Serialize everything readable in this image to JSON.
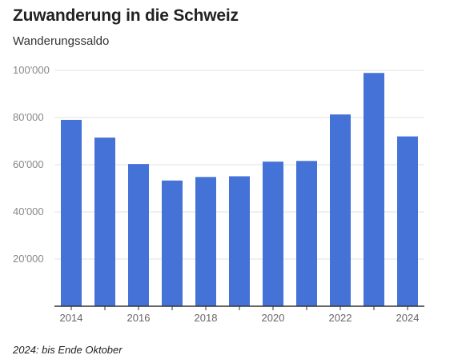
{
  "header": {
    "title": "Zuwanderung in die Schweiz",
    "subtitle": "Wanderungssaldo"
  },
  "footer": {
    "note": "2024: bis Ende Oktober"
  },
  "colors": {
    "bar": "#4472d6",
    "grid": "#e2e2e2",
    "axis": "#333333"
  },
  "chart_data": {
    "type": "bar",
    "title": "Zuwanderung in die Schweiz",
    "subtitle": "Wanderungssaldo",
    "xlabel": "",
    "ylabel": "",
    "categories": [
      "2014",
      "2015",
      "2016",
      "2017",
      "2018",
      "2019",
      "2020",
      "2021",
      "2022",
      "2023",
      "2024"
    ],
    "values": [
      79000,
      71500,
      60300,
      53300,
      54800,
      55100,
      61300,
      61600,
      81300,
      98900,
      72000
    ],
    "ylim": [
      0,
      100000
    ],
    "yticks": [
      20000,
      40000,
      60000,
      80000,
      100000
    ],
    "ytick_labels": [
      "20'000",
      "40'000",
      "60'000",
      "80'000",
      "100'000"
    ],
    "xtick_labels": [
      "2014",
      "",
      "2016",
      "",
      "2018",
      "",
      "2020",
      "",
      "2022",
      "",
      "2024"
    ],
    "grid": true,
    "legend": "none"
  }
}
